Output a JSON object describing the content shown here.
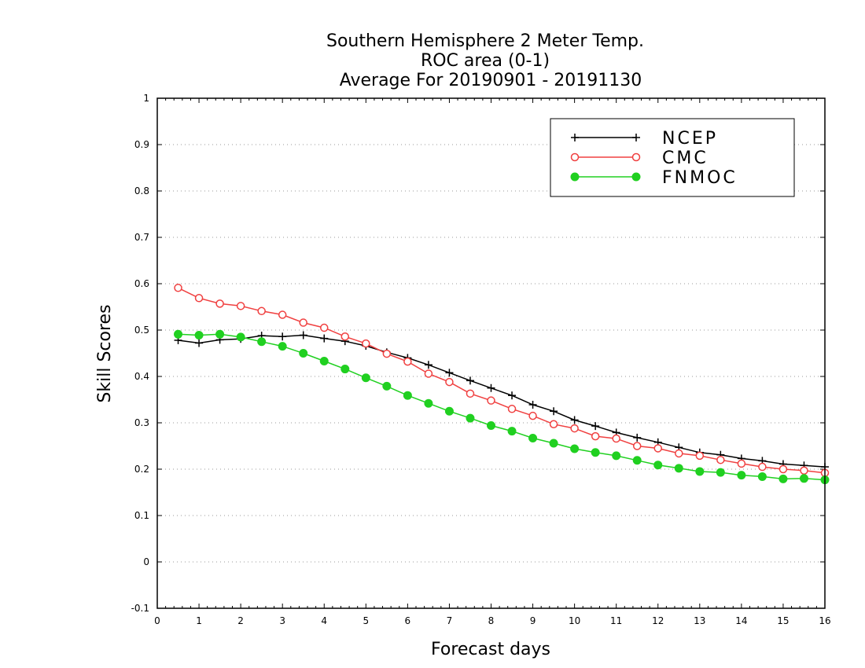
{
  "chart_data": {
    "type": "line",
    "title_lines": [
      "Southern Hemisphere 2 Meter Temp.",
      "ROC area (0-1)",
      "Average For 20190901 - 20191130"
    ],
    "xlabel": "Forecast days",
    "ylabel": "Skill Scores",
    "xlim": [
      0,
      16
    ],
    "ylim": [
      -0.1,
      1
    ],
    "x_ticks": [
      "0",
      "1",
      "2",
      "3",
      "4",
      "5",
      "6",
      "7",
      "8",
      "9",
      "10",
      "11",
      "12",
      "13",
      "14",
      "15",
      "16"
    ],
    "y_ticks": [
      "1",
      "0.9",
      "0.8",
      "0.7",
      "0.6",
      "0.5",
      "0.4",
      "0.3",
      "0.2",
      "0.1",
      "0",
      "-0.1"
    ],
    "grid": "horizontal-dotted",
    "legend_position": "top-right",
    "x": [
      0.5,
      1,
      1.5,
      2,
      2.5,
      3,
      3.5,
      4,
      4.5,
      5,
      5.5,
      6,
      6.5,
      7,
      7.5,
      8,
      8.5,
      9,
      9.5,
      10,
      10.5,
      11,
      11.5,
      12,
      12.5,
      13,
      13.5,
      14,
      14.5,
      15,
      15.5,
      16
    ],
    "series": [
      {
        "name": "NCEP",
        "color": "#000000",
        "marker": "plus",
        "values": [
          0.478,
          0.472,
          0.479,
          0.481,
          0.488,
          0.486,
          0.489,
          0.482,
          0.476,
          0.466,
          0.452,
          0.44,
          0.425,
          0.408,
          0.391,
          0.375,
          0.359,
          0.339,
          0.325,
          0.306,
          0.293,
          0.279,
          0.268,
          0.258,
          0.247,
          0.236,
          0.231,
          0.223,
          0.218,
          0.211,
          0.208,
          0.205
        ]
      },
      {
        "name": "CMC",
        "color": "#f04040",
        "marker": "open-circle",
        "values": [
          0.591,
          0.569,
          0.557,
          0.552,
          0.541,
          0.533,
          0.516,
          0.505,
          0.486,
          0.471,
          0.449,
          0.432,
          0.406,
          0.388,
          0.363,
          0.348,
          0.33,
          0.315,
          0.297,
          0.288,
          0.271,
          0.266,
          0.25,
          0.245,
          0.234,
          0.229,
          0.22,
          0.212,
          0.205,
          0.2,
          0.197,
          0.192
        ]
      },
      {
        "name": "FNMOC",
        "color": "#20d020",
        "marker": "filled-circle",
        "values": [
          0.491,
          0.489,
          0.491,
          0.485,
          0.475,
          0.465,
          0.45,
          0.433,
          0.416,
          0.397,
          0.379,
          0.359,
          0.342,
          0.325,
          0.31,
          0.294,
          0.282,
          0.267,
          0.256,
          0.244,
          0.236,
          0.229,
          0.219,
          0.209,
          0.202,
          0.195,
          0.193,
          0.187,
          0.184,
          0.179,
          0.18,
          0.177
        ]
      }
    ]
  }
}
